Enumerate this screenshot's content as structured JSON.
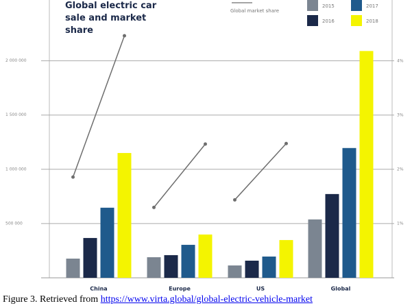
{
  "chart_data": {
    "type": "bar",
    "title": "Global electric car sale and market share",
    "categories": [
      "China",
      "Europe",
      "US",
      "Global"
    ],
    "series": [
      {
        "name": "2015",
        "color": "#7b8591",
        "values": [
          177000,
          190000,
          114000,
          538000
        ]
      },
      {
        "name": "2016",
        "color": "#1b2949",
        "values": [
          367000,
          209000,
          158000,
          772000
        ]
      },
      {
        "name": "2017",
        "color": "#1f5a8c",
        "values": [
          646000,
          304000,
          196000,
          1196000
        ]
      },
      {
        "name": "2018",
        "color": "#f4f400",
        "values": [
          1150000,
          399000,
          348000,
          2090000
        ]
      }
    ],
    "market_share": {
      "name": "Global market share",
      "axis": "y2",
      "color": "#6e6e6e",
      "values_2015": [
        1.86,
        1.3,
        1.44,
        null
      ],
      "values_2018": [
        4.47,
        2.47,
        2.48,
        null
      ]
    },
    "ylim": [
      0,
      2560000
    ],
    "yticks": [
      {
        "value": 500000,
        "label": "500 000"
      },
      {
        "value": 1000000,
        "label": "1 000 000"
      },
      {
        "value": 1500000,
        "label": "1 500 000"
      },
      {
        "value": 2000000,
        "label": "2 000 000"
      }
    ],
    "y2lim": [
      0,
      5.13
    ],
    "y2ticks": [
      {
        "value": 1,
        "label": "1%"
      },
      {
        "value": 2,
        "label": "2%"
      },
      {
        "value": 3,
        "label": "3%"
      },
      {
        "value": 4,
        "label": "4%"
      }
    ],
    "grid": true
  },
  "caption": {
    "text": "Figure 3. Retrieved from",
    "link": "https://www.virta.global/global-electric-vehicle-market"
  }
}
